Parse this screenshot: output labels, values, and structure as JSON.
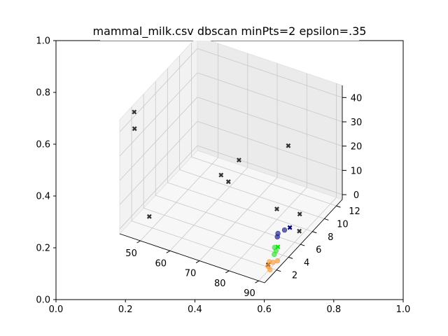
{
  "chart_data": {
    "type": "scatter",
    "projection": "3d",
    "title": "mammal_milk.csv dbscan minPts=2 epsilon=.35",
    "outer_axes": {
      "x_ticks": [
        "0.0",
        "0.2",
        "0.4",
        "0.6",
        "0.8",
        "1.0"
      ],
      "y_ticks": [
        "0.0",
        "0.2",
        "0.4",
        "0.6",
        "0.8",
        "1.0"
      ],
      "xlim": [
        0,
        1
      ],
      "ylim": [
        0,
        1
      ]
    },
    "axes3d": {
      "x_ticks": [
        "50",
        "60",
        "70",
        "80",
        "90"
      ],
      "y_ticks": [
        "2",
        "4",
        "6",
        "8",
        "10",
        "12"
      ],
      "z_ticks": [
        "0",
        "10",
        "20",
        "30",
        "40"
      ],
      "xlim": [
        43,
        92
      ],
      "ylim": [
        0,
        13
      ],
      "zlim": [
        -2,
        45
      ],
      "grid": true
    },
    "series": [
      {
        "cluster": "noise",
        "marker": "x",
        "color": "#333333",
        "points": [
          [
            44.9,
            1.5,
            45.0
          ],
          [
            46.4,
            0.8,
            40.6
          ],
          [
            71.4,
            5.9,
            24.5
          ],
          [
            70.0,
            3.6,
            23.8
          ],
          [
            78.4,
            10.7,
            20.6
          ],
          [
            64.8,
            7.4,
            8.9
          ],
          [
            82.0,
            7.0,
            5.8
          ],
          [
            86.3,
            8.7,
            1.0
          ],
          [
            90.0,
            6.8,
            0.5
          ],
          [
            90.0,
            1.6,
            0.4
          ],
          [
            52.0,
            0.5,
            7.5
          ]
        ]
      },
      {
        "cluster": "0",
        "marker": "o",
        "color": "#1a1a8c",
        "points": [
          [
            85.0,
            5.7,
            0.4
          ],
          [
            85.8,
            6.4,
            0.3
          ],
          [
            85.6,
            5.3,
            0.3
          ]
        ]
      },
      {
        "cluster": "0 core",
        "marker": "x",
        "color": "#000080",
        "points": [
          [
            86.6,
            6.9,
            0.3
          ]
        ]
      },
      {
        "cluster": "1",
        "marker": "o",
        "color": "#33dd33",
        "points": [
          [
            87.5,
            3.9,
            0.4
          ],
          [
            88.6,
            3.6,
            0.3
          ],
          [
            89.0,
            3.1,
            0.3
          ]
        ]
      },
      {
        "cluster": "1 core",
        "marker": "x",
        "color": "#00ee00",
        "points": [
          [
            88.2,
            4.1,
            0.4
          ]
        ]
      },
      {
        "cluster": "2",
        "marker": "o",
        "color": "#ff9933",
        "points": [
          [
            89.6,
            2.0,
            0.4
          ],
          [
            90.6,
            2.1,
            0.3
          ],
          [
            90.3,
            1.4,
            0.4
          ],
          [
            91.6,
            1.1,
            0.3
          ],
          [
            91.5,
            2.4,
            0.5
          ]
        ]
      }
    ]
  }
}
